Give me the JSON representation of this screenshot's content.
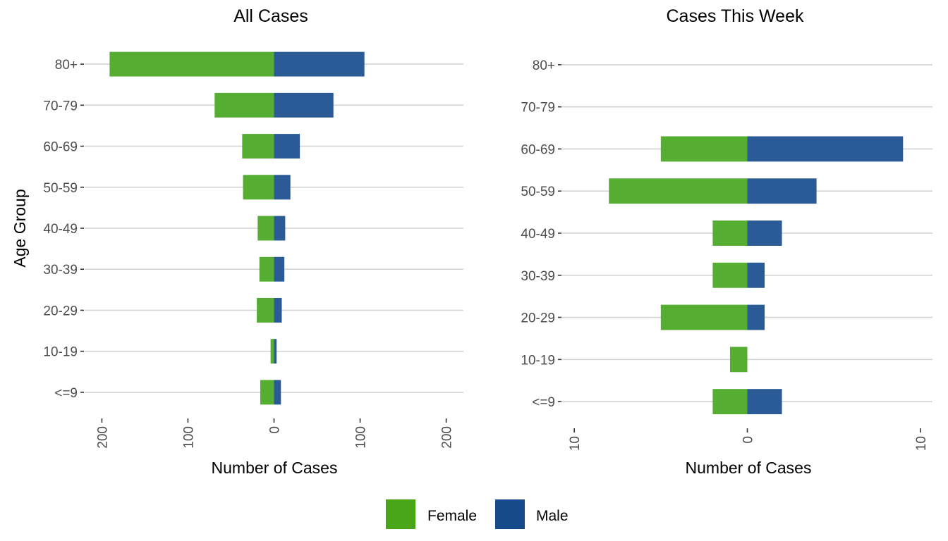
{
  "chart_data": [
    {
      "type": "bar",
      "orientation": "horizontal",
      "stacked": "diverging",
      "title": "All Cases",
      "xlabel": "Number of Cases",
      "ylabel": "Age Group",
      "categories": [
        "80+",
        "70-79",
        "60-69",
        "50-59",
        "40-49",
        "30-39",
        "20-29",
        "10-19",
        "<=9"
      ],
      "series": [
        {
          "name": "Female",
          "values": [
            191,
            69,
            37,
            36,
            19,
            17,
            20,
            4,
            16
          ]
        },
        {
          "name": "Male",
          "values": [
            105,
            69,
            30,
            19,
            13,
            12,
            9,
            3,
            8
          ]
        }
      ],
      "xticks": [
        -200,
        -100,
        0,
        100,
        200
      ],
      "xtick_labels": [
        "200",
        "100",
        "0",
        "100",
        "200"
      ],
      "xlim": [
        -220,
        220
      ],
      "grid": "horizontal"
    },
    {
      "type": "bar",
      "orientation": "horizontal",
      "stacked": "diverging",
      "title": "Cases This Week",
      "xlabel": "Number of Cases",
      "ylabel": "",
      "categories": [
        "80+",
        "70-79",
        "60-69",
        "50-59",
        "40-49",
        "30-39",
        "20-29",
        "10-19",
        "<=9"
      ],
      "series": [
        {
          "name": "Female",
          "values": [
            0,
            0,
            5,
            8,
            2,
            2,
            5,
            1,
            2
          ]
        },
        {
          "name": "Male",
          "values": [
            0,
            0,
            9,
            4,
            2,
            1,
            1,
            0,
            2
          ]
        }
      ],
      "xticks": [
        -10,
        0,
        10
      ],
      "xtick_labels": [
        "10",
        "0",
        "10"
      ],
      "xlim": [
        -10.7,
        10.7
      ],
      "grid": "horizontal"
    }
  ],
  "legend": {
    "position": "bottom",
    "items": [
      {
        "label": "Female",
        "color": "#49a619"
      },
      {
        "label": "Male",
        "color": "#174a8b"
      }
    ]
  },
  "colors": {
    "female_bar": "#55ad31",
    "male_bar": "#2a5b96",
    "grid": "#d3d3d3",
    "tick": "#333333"
  }
}
